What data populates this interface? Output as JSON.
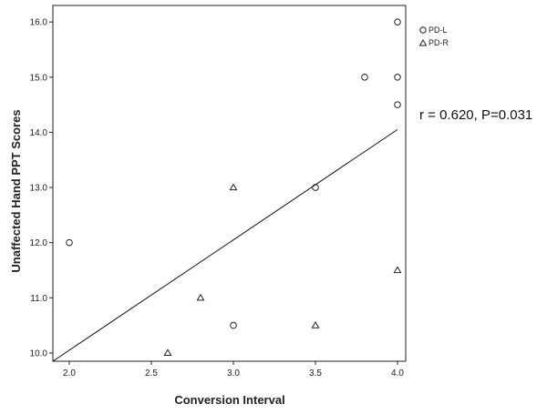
{
  "chart_data": {
    "type": "scatter",
    "xlabel": "Conversion Interval",
    "ylabel": "Unaffected Hand PPT Scores",
    "xlim": [
      1.9,
      4.05
    ],
    "ylim": [
      9.85,
      16.3
    ],
    "xticks": [
      2.0,
      2.5,
      3.0,
      3.5,
      4.0
    ],
    "xtick_labels": [
      "2.0",
      "2.5",
      "3.0",
      "3.5",
      "4.0"
    ],
    "yticks": [
      10.0,
      11.0,
      12.0,
      13.0,
      14.0,
      15.0,
      16.0
    ],
    "ytick_labels": [
      "10.0",
      "11.0",
      "12.0",
      "13.0",
      "14.0",
      "15.0",
      "16.0"
    ],
    "grid": false,
    "legend": "top-right",
    "series": [
      {
        "name": "PD-L",
        "marker": "circle",
        "x": [
          2.0,
          3.0,
          3.5,
          3.8,
          4.0,
          4.0,
          4.0
        ],
        "y": [
          12.0,
          10.5,
          13.0,
          15.0,
          16.0,
          15.0,
          14.5
        ]
      },
      {
        "name": "PD-R",
        "marker": "triangle",
        "x": [
          2.6,
          2.8,
          3.0,
          3.5,
          4.0
        ],
        "y": [
          10.0,
          11.0,
          13.0,
          10.5,
          11.5
        ]
      }
    ],
    "fit_line": {
      "x": [
        1.9,
        4.0
      ],
      "y": [
        9.85,
        14.05
      ]
    },
    "annotation": "r = 0.620, P=0.031"
  }
}
